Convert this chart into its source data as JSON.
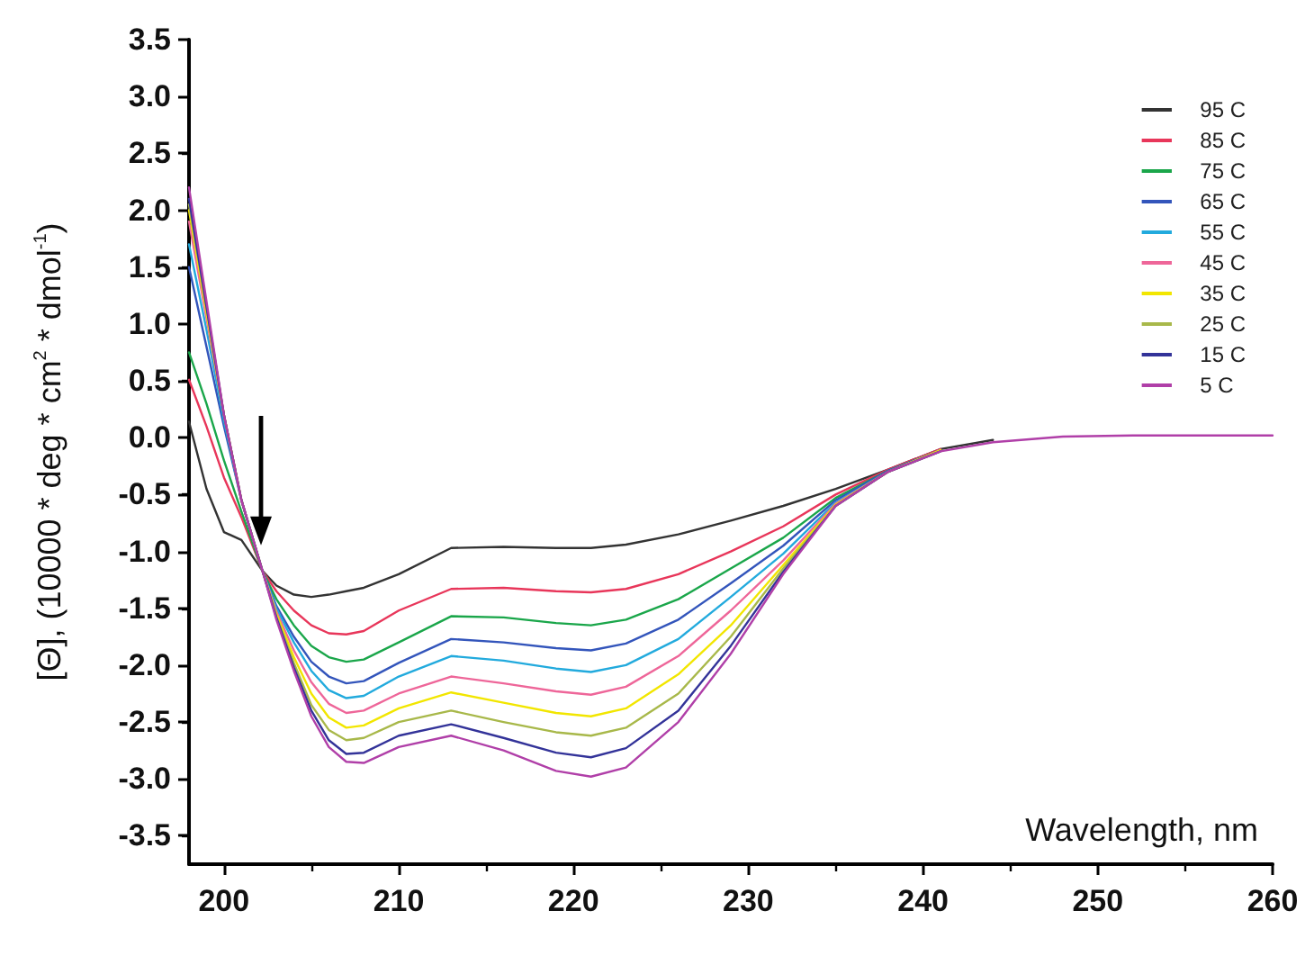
{
  "chart_data": {
    "type": "line",
    "xlabel": "Wavelength, nm",
    "ylabel": "[Θ], (10000 * deg * cm$^{2}$ * dmol$^{-1}$)",
    "x": [
      198,
      199,
      200,
      201,
      202.2,
      203,
      204,
      205,
      206,
      207,
      208,
      210,
      213,
      216,
      219,
      221,
      223,
      226,
      229,
      232,
      235,
      238,
      241,
      244,
      248,
      252,
      256,
      260
    ],
    "series": [
      {
        "name": "95 C",
        "color": "#333333",
        "values": [
          0.14,
          -0.45,
          -0.83,
          -0.9,
          -1.17,
          -1.3,
          -1.38,
          -1.4,
          -1.38,
          -1.35,
          -1.32,
          -1.2,
          -0.97,
          -0.96,
          -0.97,
          -0.97,
          -0.94,
          -0.85,
          -0.73,
          -0.6,
          -0.45,
          -0.28,
          -0.1,
          -0.02,
          null,
          null,
          null,
          null
        ]
      },
      {
        "name": "85 C",
        "color": "#e8365a",
        "values": [
          0.51,
          0.1,
          -0.35,
          -0.7,
          -1.17,
          -1.35,
          -1.52,
          -1.65,
          -1.72,
          -1.73,
          -1.7,
          -1.52,
          -1.33,
          -1.32,
          -1.35,
          -1.36,
          -1.33,
          -1.2,
          -1.0,
          -0.78,
          -0.5,
          -0.28,
          -0.1,
          null,
          null,
          null,
          null,
          null
        ]
      },
      {
        "name": "75 C",
        "color": "#1aa64a",
        "values": [
          0.75,
          0.3,
          -0.2,
          -0.65,
          -1.17,
          -1.42,
          -1.65,
          -1.83,
          -1.93,
          -1.97,
          -1.95,
          -1.8,
          -1.57,
          -1.58,
          -1.63,
          -1.65,
          -1.6,
          -1.42,
          -1.15,
          -0.88,
          -0.53,
          -0.29,
          -0.11,
          null,
          null,
          null,
          null,
          null
        ]
      },
      {
        "name": "65 C",
        "color": "#3355bb",
        "values": [
          1.5,
          0.8,
          0.1,
          -0.55,
          -1.17,
          -1.48,
          -1.75,
          -1.97,
          -2.1,
          -2.16,
          -2.14,
          -1.98,
          -1.77,
          -1.8,
          -1.85,
          -1.87,
          -1.81,
          -1.6,
          -1.28,
          -0.95,
          -0.55,
          -0.29,
          -0.11,
          null,
          null,
          null,
          null,
          null
        ]
      },
      {
        "name": "55 C",
        "color": "#22aadd",
        "values": [
          1.7,
          0.95,
          0.15,
          -0.55,
          -1.17,
          -1.5,
          -1.8,
          -2.05,
          -2.22,
          -2.29,
          -2.27,
          -2.1,
          -1.92,
          -1.96,
          -2.03,
          -2.06,
          -2.0,
          -1.77,
          -1.4,
          -1.02,
          -0.57,
          -0.3,
          -0.11,
          null,
          null,
          null,
          null,
          null
        ]
      },
      {
        "name": "45 C",
        "color": "#ee6699",
        "values": [
          1.9,
          1.05,
          0.2,
          -0.55,
          -1.17,
          -1.53,
          -1.87,
          -2.15,
          -2.34,
          -2.42,
          -2.4,
          -2.25,
          -2.1,
          -2.16,
          -2.23,
          -2.26,
          -2.19,
          -1.92,
          -1.52,
          -1.08,
          -0.58,
          -0.3,
          -0.11,
          null,
          null,
          null,
          null,
          null
        ]
      },
      {
        "name": "35 C",
        "color": "#f2e600",
        "values": [
          2.0,
          1.1,
          0.2,
          -0.55,
          -1.17,
          -1.55,
          -1.93,
          -2.25,
          -2.46,
          -2.55,
          -2.53,
          -2.38,
          -2.24,
          -2.33,
          -2.42,
          -2.45,
          -2.38,
          -2.08,
          -1.65,
          -1.12,
          -0.59,
          -0.3,
          -0.11,
          null,
          null,
          null,
          null,
          null
        ]
      },
      {
        "name": "25 C",
        "color": "#a8b84a",
        "values": [
          2.05,
          1.15,
          0.2,
          -0.55,
          -1.17,
          -1.57,
          -1.98,
          -2.35,
          -2.57,
          -2.66,
          -2.64,
          -2.5,
          -2.4,
          -2.5,
          -2.59,
          -2.62,
          -2.55,
          -2.25,
          -1.75,
          -1.15,
          -0.6,
          -0.3,
          -0.12,
          null,
          null,
          null,
          null,
          null
        ]
      },
      {
        "name": "15 C",
        "color": "#333399",
        "values": [
          2.1,
          1.15,
          0.2,
          -0.55,
          -1.17,
          -1.58,
          -2.02,
          -2.4,
          -2.66,
          -2.78,
          -2.77,
          -2.62,
          -2.52,
          -2.64,
          -2.77,
          -2.81,
          -2.73,
          -2.4,
          -1.83,
          -1.18,
          -0.6,
          -0.3,
          -0.12,
          null,
          null,
          null,
          null,
          null
        ]
      },
      {
        "name": "5 C",
        "color": "#b03fa8",
        "values": [
          2.2,
          1.2,
          0.2,
          -0.55,
          -1.17,
          -1.6,
          -2.05,
          -2.45,
          -2.72,
          -2.85,
          -2.86,
          -2.72,
          -2.62,
          -2.75,
          -2.93,
          -2.98,
          -2.9,
          -2.5,
          -1.9,
          -1.2,
          -0.6,
          -0.3,
          -0.12,
          -0.04,
          0.01,
          0.02,
          0.02,
          0.02
        ]
      }
    ],
    "xlim": [
      198,
      260
    ],
    "xticks": [
      200,
      210,
      220,
      230,
      240,
      250,
      260
    ],
    "ylim": [
      -3.75,
      3.5
    ],
    "yticks": [
      {
        "value": -3.5,
        "label": "-3.5"
      },
      {
        "value": -3,
        "label": "-3.0"
      },
      {
        "value": -2.5,
        "label": "-2.5"
      },
      {
        "value": -2,
        "label": "-2.0"
      },
      {
        "value": -1.5,
        "label": "-1.5"
      },
      {
        "value": -1,
        "label": "-1.0"
      },
      {
        "value": -0.5,
        "label": "-0.5"
      },
      {
        "value": 0,
        "label": "0.0"
      },
      {
        "value": 0.5,
        "label": "0.5"
      },
      {
        "value": 1,
        "label": "1.0"
      },
      {
        "value": 1.5,
        "label": "1.5"
      },
      {
        "value": 2,
        "label": "2.0"
      },
      {
        "value": 2.5,
        "label": "2.5"
      },
      {
        "value": 3,
        "label": "3.0"
      },
      {
        "value": 3.5,
        "label": "3.5"
      }
    ],
    "legend": "top right",
    "grid": false,
    "marker": "none",
    "line_style": "solid"
  }
}
